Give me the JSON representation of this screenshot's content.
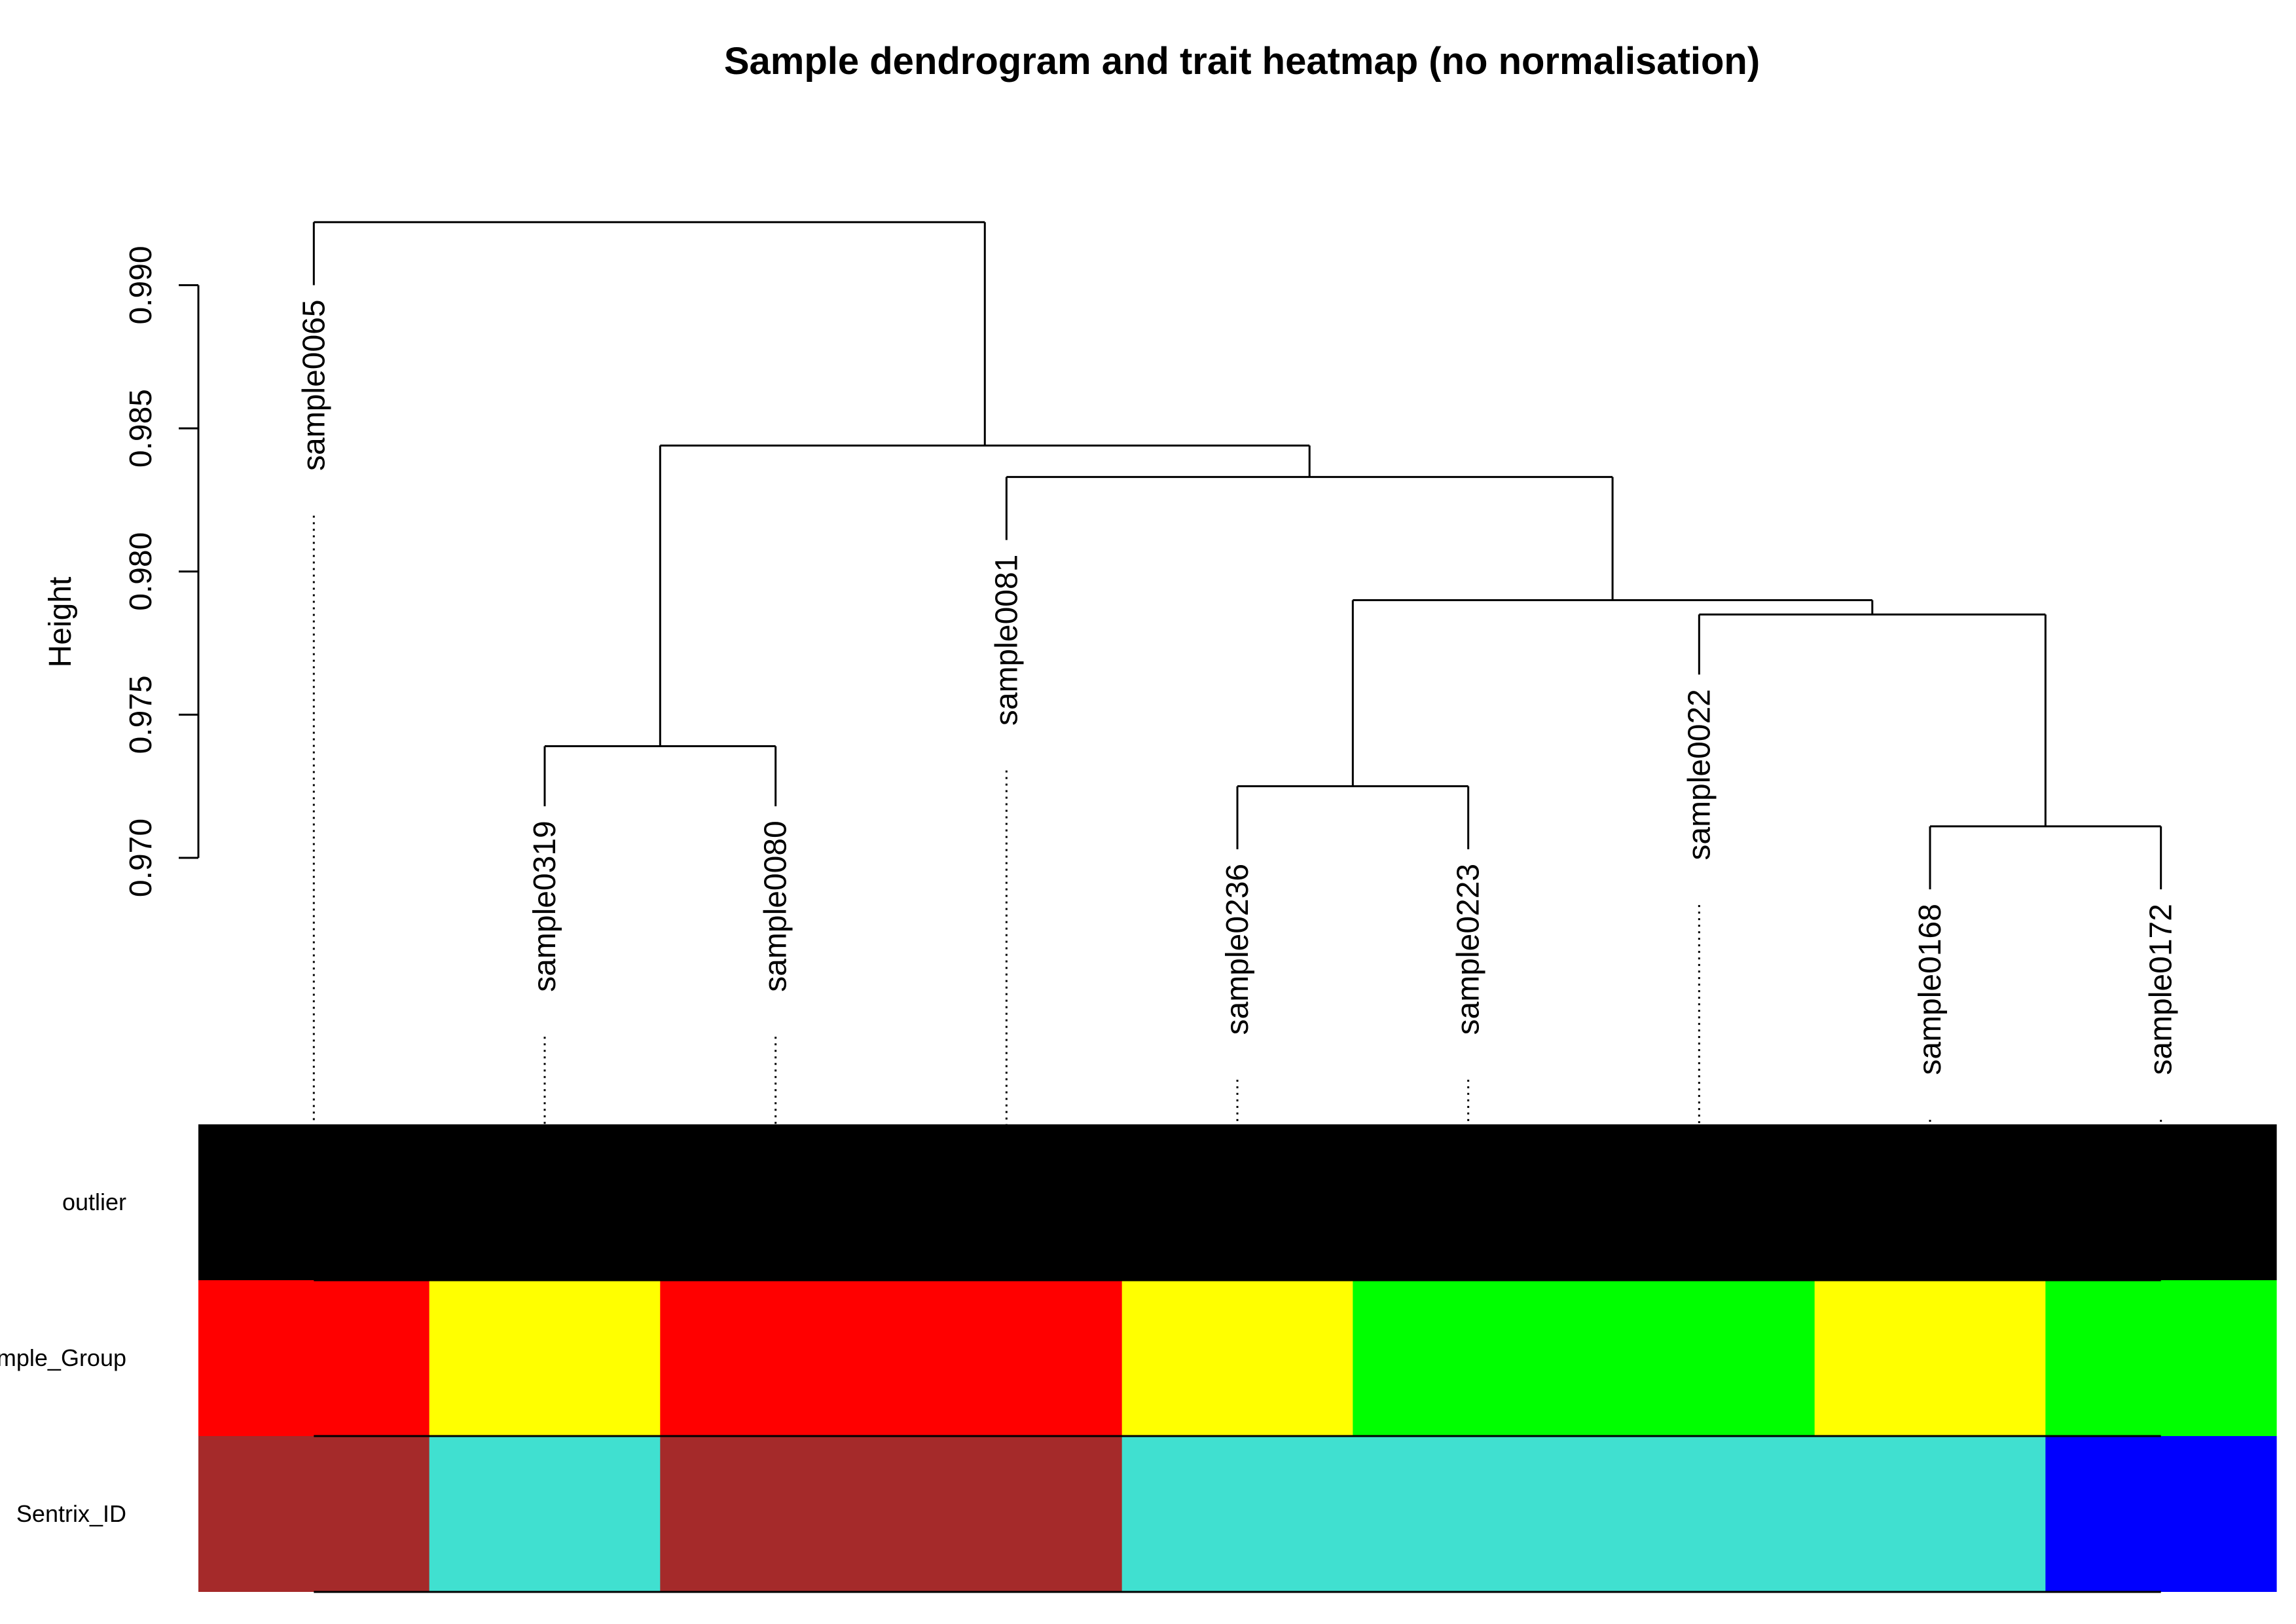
{
  "chart_data": {
    "type": "dendrogram-heatmap",
    "title": "Sample dendrogram and trait heatmap (no normalisation)",
    "ylabel": "Height",
    "ylim": [
      0.97,
      0.992
    ],
    "yticks": [
      "0.970",
      "0.975",
      "0.980",
      "0.985",
      "0.990"
    ],
    "leaves": [
      {
        "name": "sample0065",
        "height": 0.99
      },
      {
        "name": "sample0319",
        "height": 0.9718
      },
      {
        "name": "sample0080",
        "height": 0.9718
      },
      {
        "name": "sample0081",
        "height": 0.9811
      },
      {
        "name": "sample0236",
        "height": 0.9703
      },
      {
        "name": "sample0223",
        "height": 0.9703
      },
      {
        "name": "sample0022",
        "height": 0.9764
      },
      {
        "name": "sample0168",
        "height": 0.9689
      },
      {
        "name": "sample0172",
        "height": 0.9689
      }
    ],
    "merges": [
      {
        "left": [
          "leaf",
          1
        ],
        "right": [
          "leaf",
          2
        ],
        "height": 0.9739
      },
      {
        "left": [
          "leaf",
          4
        ],
        "right": [
          "leaf",
          5
        ],
        "height": 0.9725
      },
      {
        "left": [
          "leaf",
          7
        ],
        "right": [
          "leaf",
          8
        ],
        "height": 0.9711
      },
      {
        "left": [
          "leaf",
          6
        ],
        "right": [
          "merge",
          2
        ],
        "height": 0.9785
      },
      {
        "left": [
          "merge",
          1
        ],
        "right": [
          "merge",
          3
        ],
        "height": 0.979
      },
      {
        "left": [
          "leaf",
          3
        ],
        "right": [
          "merge",
          4
        ],
        "height": 0.9833
      },
      {
        "left": [
          "merge",
          0
        ],
        "right": [
          "merge",
          5
        ],
        "height": 0.9844
      },
      {
        "left": [
          "leaf",
          0
        ],
        "right": [
          "merge",
          6
        ],
        "height": 0.9922
      }
    ],
    "traits": [
      {
        "name": "outlier",
        "colors": [
          "#000000",
          "#000000",
          "#000000",
          "#000000",
          "#000000",
          "#000000",
          "#000000",
          "#000000",
          "#000000"
        ]
      },
      {
        "name": "Sample_Group",
        "colors": [
          "#FF0000",
          "#FFFF00",
          "#FF0000",
          "#FF0000",
          "#FFFF00",
          "#00FF00",
          "#00FF00",
          "#FFFF00",
          "#00FF00"
        ]
      },
      {
        "name": "Sentrix_ID",
        "colors": [
          "#A52A2A",
          "#40E0D0",
          "#A52A2A",
          "#A52A2A",
          "#40E0D0",
          "#40E0D0",
          "#40E0D0",
          "#40E0D0",
          "#0000FF"
        ]
      }
    ]
  }
}
